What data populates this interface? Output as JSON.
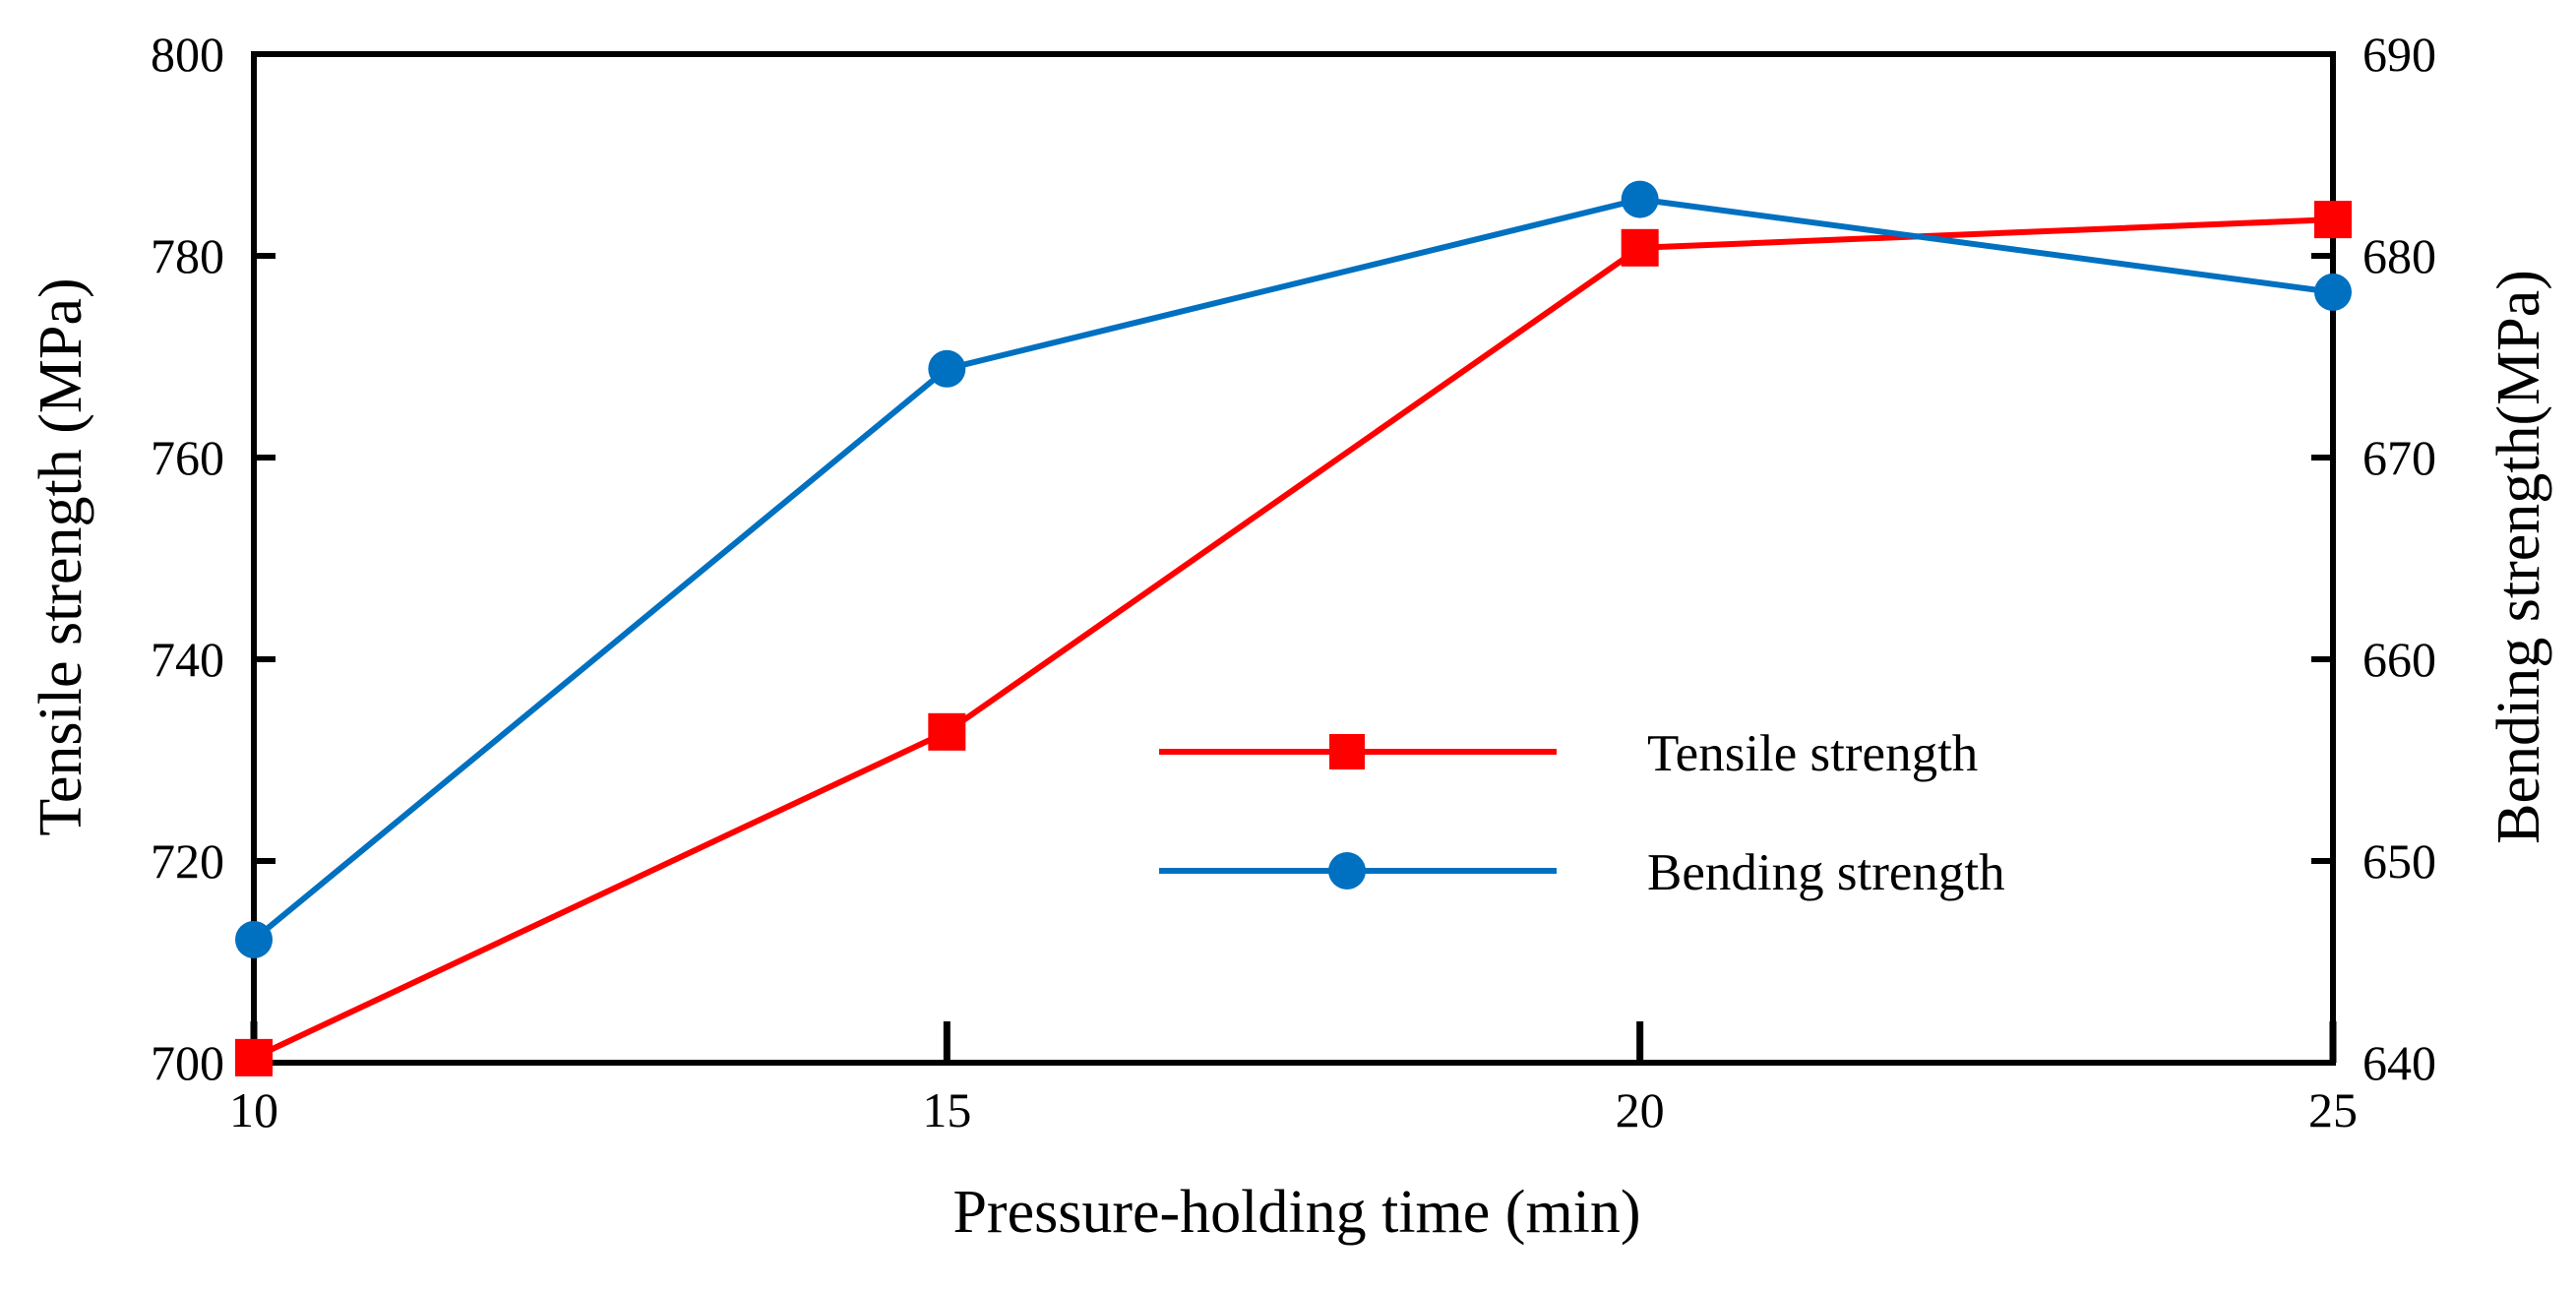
{
  "chart_data": {
    "type": "line",
    "title": "",
    "xlabel": "Pressure-holding time (min)",
    "ylabel_left": "Tensile strength (MPa)",
    "ylabel_right": "Bending strength(MPa)",
    "x": [
      10,
      15,
      20,
      25
    ],
    "xlim": [
      10,
      25
    ],
    "x_ticks": [
      "10",
      "15",
      "20",
      "25"
    ],
    "ylim_left": [
      700,
      800
    ],
    "y_ticks_left": [
      "700",
      "720",
      "740",
      "760",
      "780",
      "800"
    ],
    "ylim_right": [
      640,
      690
    ],
    "y_ticks_right": [
      "640",
      "650",
      "660",
      "670",
      "680",
      "690"
    ],
    "grid": false,
    "legend_position": "center-right",
    "series": [
      {
        "name": "Tensile strength",
        "axis": "left",
        "marker": "square",
        "color": "#ff0000",
        "values": [
          700.5,
          732.8,
          780.8,
          783.6
        ]
      },
      {
        "name": "Bending strength",
        "axis": "right",
        "marker": "circle",
        "color": "#0070c0",
        "values": [
          646.1,
          674.4,
          682.8,
          678.2
        ]
      }
    ]
  }
}
